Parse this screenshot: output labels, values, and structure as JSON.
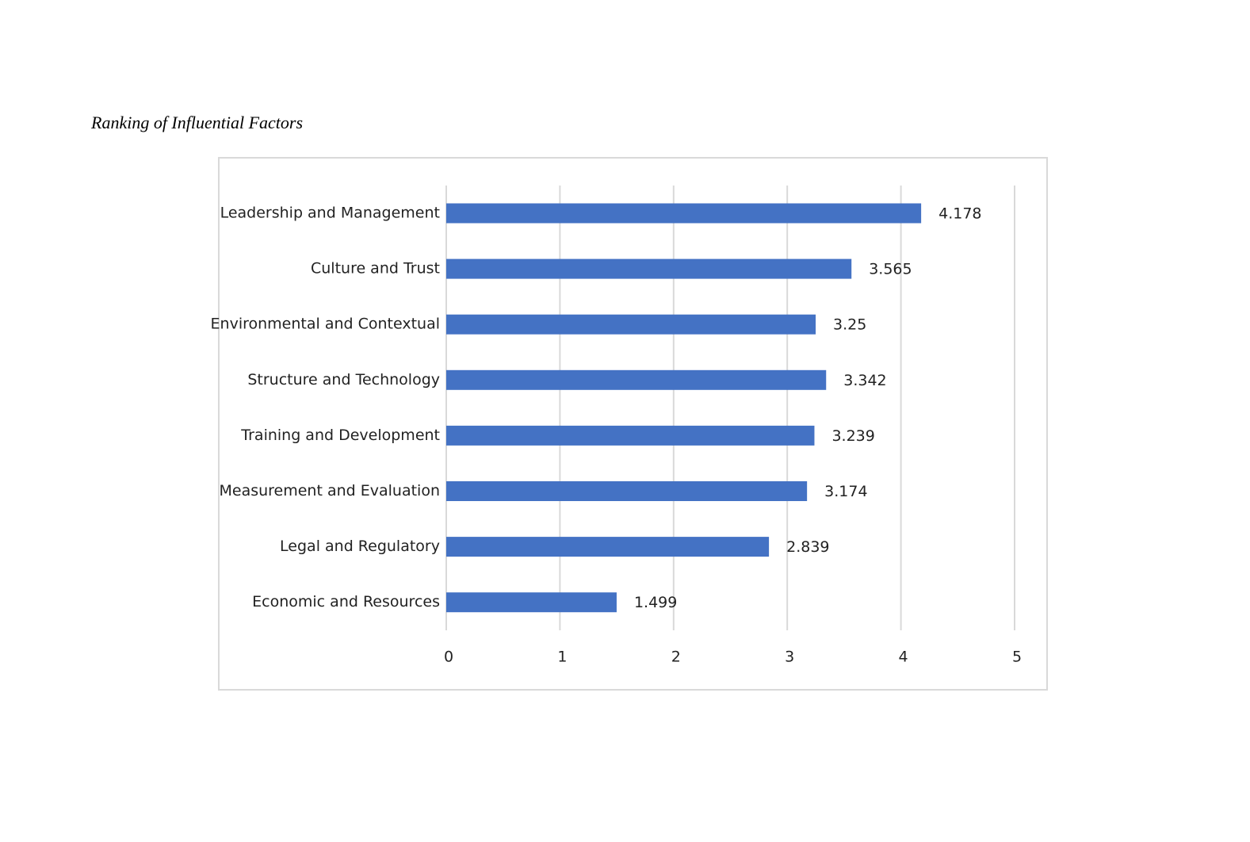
{
  "chart_data": {
    "type": "bar",
    "orientation": "horizontal",
    "title": "Ranking of Influential Factors",
    "categories": [
      "Leadership and Management",
      "Culture and Trust",
      "Environmental and Contextual",
      "Structure and Technology",
      "Training and Development",
      "Measurement and Evaluation",
      "Legal and Regulatory",
      "Economic and Resources"
    ],
    "values": [
      4.178,
      3.565,
      3.25,
      3.342,
      3.239,
      3.174,
      2.839,
      1.499
    ],
    "color": "#4472c4",
    "xlim": [
      0,
      5
    ],
    "xticks": [
      0,
      1,
      2,
      3,
      4,
      5
    ],
    "grid": true
  }
}
